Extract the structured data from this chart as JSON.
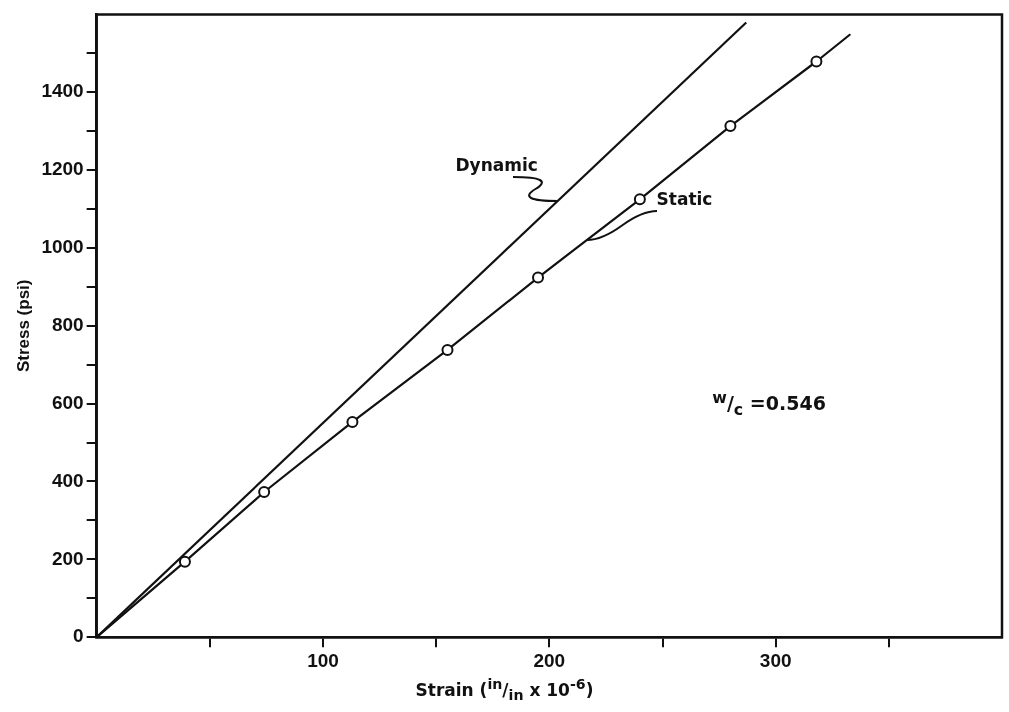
{
  "chart_data": {
    "type": "line",
    "xlabel": "Strain ($^{in}$/$_{in}$ x 10$^{-6}$)",
    "ylabel": "Stress (psi)",
    "xlim": [
      0,
      400
    ],
    "ylim": [
      0,
      1600
    ],
    "xticks": [
      {
        "value": 50,
        "label": null
      },
      100,
      {
        "value": 150,
        "label": null
      },
      200,
      {
        "value": 250,
        "label": null
      },
      300,
      {
        "value": 350,
        "label": null
      }
    ],
    "yticks": [
      0,
      {
        "value": 100,
        "label": null
      },
      200,
      {
        "value": 300,
        "label": null
      },
      400,
      {
        "value": 500,
        "label": null
      },
      600,
      {
        "value": 700,
        "label": null
      },
      800,
      {
        "value": 900,
        "label": null
      },
      1000,
      {
        "value": 1100,
        "label": null
      },
      1200,
      {
        "value": 1300,
        "label": null
      },
      1400,
      {
        "value": 1500,
        "label": null
      }
    ],
    "grid": false,
    "legend": false,
    "annotations": [
      "$^{w}$/$_{c}$ =0.546"
    ],
    "series": [
      {
        "name": "Dynamic",
        "color": "#111111",
        "marker": "none",
        "x": [
          0,
          287
        ],
        "values": [
          0,
          1579
        ]
      },
      {
        "name": "Static",
        "color": "#111111",
        "marker": "none",
        "x": [
          0,
          39,
          74,
          113,
          155,
          195,
          240,
          280,
          318,
          333
        ],
        "values": [
          0,
          194,
          373,
          553,
          738,
          924,
          1125,
          1313,
          1479,
          1549
        ]
      },
      {
        "type": "scatter",
        "color": "#111111",
        "marker": "circle",
        "x": [
          39,
          74,
          113,
          155,
          195,
          240,
          280,
          318
        ],
        "values": [
          194,
          373,
          553,
          738,
          924,
          1125,
          1313,
          1479
        ]
      }
    ]
  }
}
